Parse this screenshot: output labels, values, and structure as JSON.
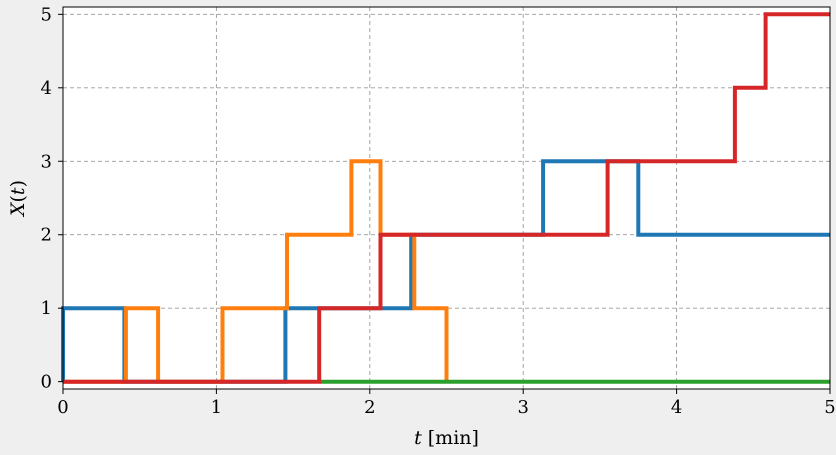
{
  "chart_data": {
    "type": "line",
    "step": true,
    "xlabel": "t [min]",
    "ylabel": "X(t)",
    "xlim": [
      0,
      5
    ],
    "ylim": [
      -0.1,
      5.1
    ],
    "xticks": [
      0,
      1,
      2,
      3,
      4,
      5
    ],
    "yticks": [
      0,
      1,
      2,
      3,
      4,
      5
    ],
    "grid": true,
    "background": "#efefef",
    "plot_background": "#ffffff",
    "series": [
      {
        "color": "#1f77b4",
        "x": [
          0,
          0,
          0.4,
          0.4,
          0.62,
          0.62,
          1.45,
          1.45,
          1.45,
          2.27,
          2.27,
          3.13,
          3.13,
          3.75,
          3.75,
          5
        ],
        "y": [
          0,
          1,
          1,
          0,
          0,
          0,
          0,
          1,
          1,
          1,
          2,
          2,
          3,
          3,
          2,
          2
        ]
      },
      {
        "color": "#ff7f0e",
        "x": [
          0,
          0.41,
          0.41,
          0.62,
          0.62,
          1.04,
          1.04,
          1.46,
          1.46,
          1.88,
          1.88,
          2.07,
          2.07,
          2.29,
          2.29,
          2.5,
          2.5
        ],
        "y": [
          0,
          0,
          1,
          1,
          0,
          0,
          1,
          1,
          2,
          2,
          3,
          3,
          2,
          2,
          1,
          1,
          0
        ]
      },
      {
        "color": "#2ca02c",
        "x": [
          1.68,
          5
        ],
        "y": [
          0,
          0
        ]
      },
      {
        "color": "#d62728",
        "x": [
          0,
          1.67,
          1.67,
          2.07,
          2.07,
          2.29,
          2.29,
          3.55,
          3.55,
          4.38,
          4.38,
          4.58,
          4.58,
          5
        ],
        "y": [
          0,
          0,
          1,
          1,
          2,
          2,
          2,
          2,
          3,
          3,
          4,
          4,
          5,
          5
        ]
      }
    ]
  }
}
